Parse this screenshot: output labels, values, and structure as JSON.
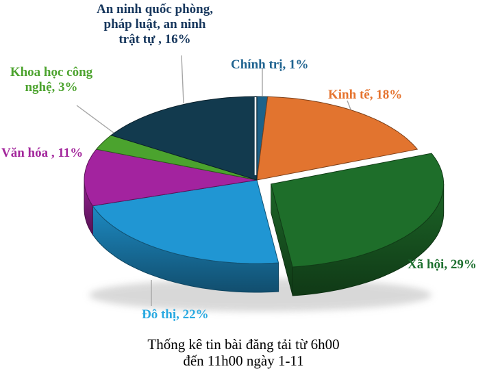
{
  "caption": {
    "text": "Thống kê tin bài đăng tải từ 6h00\nđến 11h00 ngày 1-11",
    "color": "#000000"
  },
  "labels": {
    "an_ninh": {
      "text": "An ninh quốc phòng,\npháp luật, an ninh\ntrật tự , 16%",
      "color": "#17375d"
    },
    "khoa_hoc": {
      "text": "Khoa học công\nnghệ, 3%",
      "color": "#4ca32e"
    },
    "van_hoa": {
      "text": "Văn hóa , 11%",
      "color": "#a3279c"
    },
    "chinh_tri": {
      "text": "Chính trị, 1%",
      "color": "#1f6390"
    },
    "kinh_te": {
      "text": "Kinh tế, 18%",
      "color": "#e5732e"
    },
    "xa_hoi": {
      "text": "Xã hội, 29%",
      "color": "#1e7030"
    },
    "do_thi": {
      "text": "Đô thị, 22%",
      "color": "#29a9e1"
    }
  },
  "leader_line_color": "#a6a6a6",
  "chart_data": {
    "type": "pie",
    "three_d": true,
    "start_angle_deg": 0,
    "direction": "clockwise",
    "title": "Thống kê tin bài đăng tải từ 6h00 đến 11h00 ngày 1-11",
    "legend": "none",
    "slices": [
      {
        "id": "chinh_tri",
        "label": "Chính trị",
        "value": 1,
        "color": "#1d6289",
        "exploded": false
      },
      {
        "id": "kinh_te",
        "label": "Kinh tế",
        "value": 18,
        "color": "#e2742f",
        "exploded": false
      },
      {
        "id": "xa_hoi",
        "label": "Xã hội",
        "value": 29,
        "color": "#1e6e2a",
        "exploded": true
      },
      {
        "id": "do_thi",
        "label": "Đô thị",
        "value": 22,
        "color": "#2096d3",
        "exploded": false
      },
      {
        "id": "van_hoa",
        "label": "Văn hóa",
        "value": 11,
        "color": "#a3239f",
        "exploded": false
      },
      {
        "id": "khoa_hoc",
        "label": "Khoa học công nghệ",
        "value": 3,
        "color": "#4ba32e",
        "exploded": false
      },
      {
        "id": "an_ninh",
        "label": "An ninh quốc phòng, pháp luật, an ninh trật tự",
        "value": 16,
        "color": "#123a4e",
        "exploded": false
      }
    ]
  }
}
